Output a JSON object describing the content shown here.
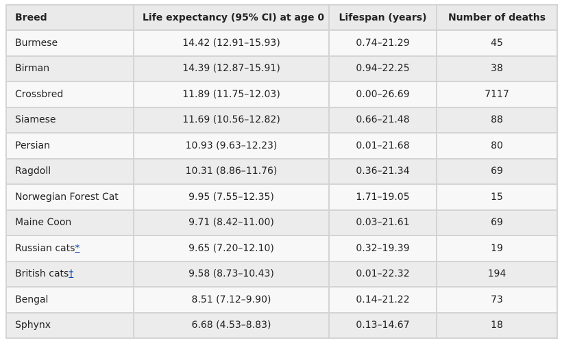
{
  "table": {
    "headers": [
      "Breed",
      "Life expectancy (95% CI) at age 0",
      "Lifespan (years)",
      "Number of deaths"
    ],
    "rows": [
      [
        "Burmese",
        "14.42 (12.91–15.93)",
        "0.74–21.29",
        "45"
      ],
      [
        "Birman",
        "14.39 (12.87–15.91)",
        "0.94–22.25",
        "38"
      ],
      [
        "Crossbred",
        "11.89 (11.75–12.03)",
        "0.00–26.69",
        "7117"
      ],
      [
        "Siamese",
        "11.69 (10.56–12.82)",
        "0.66–21.48",
        "88"
      ],
      [
        "Persian",
        "10.93 (9.63–12.23)",
        "0.01–21.68",
        "80"
      ],
      [
        "Ragdoll",
        "10.31 (8.86–11.76)",
        "0.36–21.34",
        "69"
      ],
      [
        "Norwegian Forest Cat",
        "9.95 (7.55–12.35)",
        "1.71–19.05",
        "15"
      ],
      [
        "Maine Coon",
        "9.71 (8.42–11.00)",
        "0.03–21.61",
        "69"
      ],
      [
        {
          "text": "Russian cats",
          "note": "*"
        },
        "9.65 (7.20–12.10)",
        "0.32–19.39",
        "19"
      ],
      [
        {
          "text": "British cats",
          "note": "†"
        },
        "9.58 (8.73–10.43)",
        "0.01–22.32",
        "194"
      ],
      [
        "Bengal",
        "8.51 (7.12–9.90)",
        "0.14–21.22",
        "73"
      ],
      [
        "Sphynx",
        "6.68 (4.53–8.83)",
        "0.13–14.67",
        "18"
      ]
    ]
  }
}
